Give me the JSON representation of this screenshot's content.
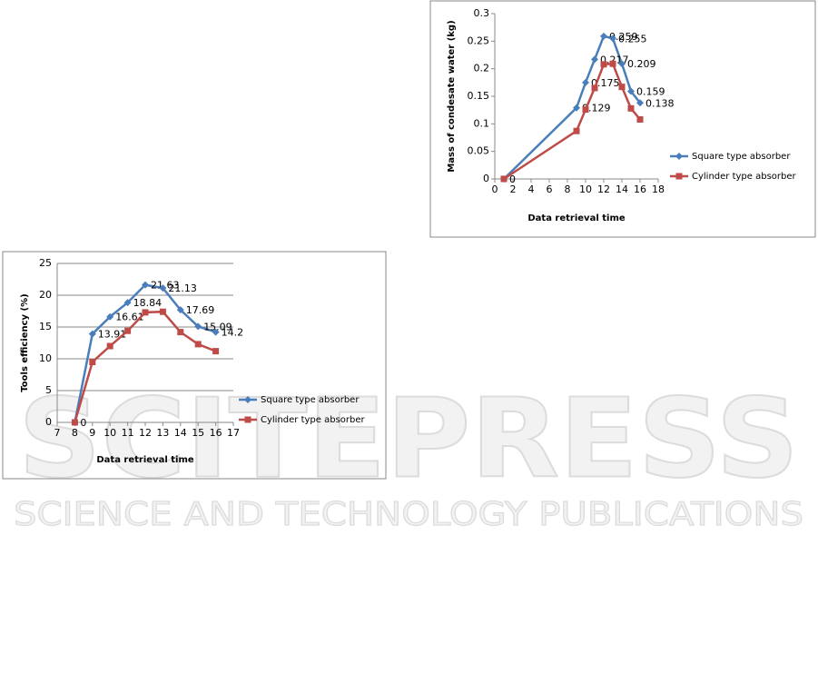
{
  "chart_data": [
    {
      "type": "line",
      "y_label": "Mass of condesate water (kg)",
      "x_label": "Data retrieval time",
      "x": [
        1,
        9,
        10,
        11,
        12,
        13,
        14,
        15,
        16
      ],
      "series": [
        {
          "name": "Square type absorber",
          "color": "#4a7ebb",
          "marker": "diamond",
          "data_labels": true,
          "values": [
            0,
            0.129,
            0.175,
            0.217,
            0.259,
            0.255,
            0.209,
            0.159,
            0.138
          ]
        },
        {
          "name": "Cylinder type absorber",
          "color": "#be4b48",
          "marker": "square",
          "data_labels": false,
          "values": [
            0,
            0.087,
            0.126,
            0.165,
            0.208,
            0.209,
            0.167,
            0.128,
            0.108
          ]
        }
      ],
      "xlim": [
        0,
        18
      ],
      "xticks": [
        0,
        2,
        4,
        6,
        8,
        10,
        12,
        14,
        16,
        18
      ],
      "ylim": [
        0,
        0.3
      ],
      "yticks": [
        0,
        0.05,
        0.1,
        0.15,
        0.2,
        0.25,
        0.3
      ],
      "grid": false,
      "legend": "right"
    },
    {
      "type": "line",
      "y_label": "Tools efficiency (%)",
      "x_label": "Data retrieval time",
      "x": [
        8,
        9,
        10,
        11,
        12,
        13,
        14,
        15,
        16
      ],
      "series": [
        {
          "name": "Square type absorber",
          "color": "#4a7ebb",
          "marker": "diamond",
          "data_labels": true,
          "values": [
            0,
            13.91,
            16.61,
            18.84,
            21.63,
            21.13,
            17.69,
            15.09,
            14.2
          ]
        },
        {
          "name": "Cylinder type absorber",
          "color": "#be4b48",
          "marker": "square",
          "data_labels": false,
          "values": [
            0,
            9.5,
            12,
            14.4,
            17.3,
            17.4,
            14.2,
            12.3,
            11.2
          ]
        }
      ],
      "xlim": [
        7,
        17
      ],
      "xticks": [
        7,
        8,
        9,
        10,
        11,
        12,
        13,
        14,
        15,
        16,
        17
      ],
      "ylim": [
        0,
        25
      ],
      "yticks": [
        0,
        5,
        10,
        15,
        20,
        25
      ],
      "grid": true,
      "legend": "right"
    }
  ],
  "watermark": {
    "logo": "SCITEPRESS",
    "tagline": "SCIENCE AND TECHNOLOGY PUBLICATIONS"
  }
}
